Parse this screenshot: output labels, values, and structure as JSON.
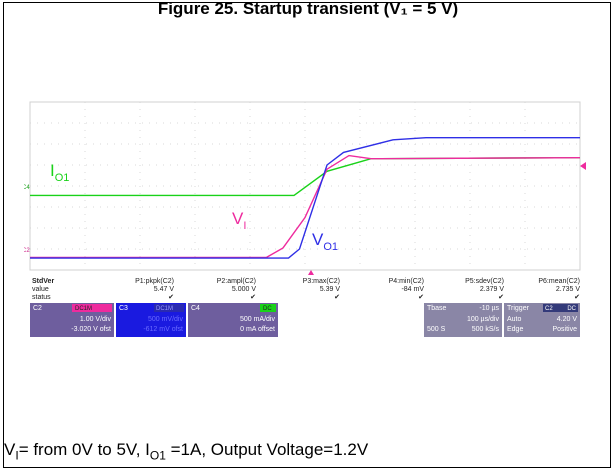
{
  "title": "Figure 25. Startup transient (V₁ = 5 V)",
  "caption": {
    "text1": "V",
    "sub1": "I",
    "text2": "= from 0V to 5V, I",
    "sub2": "O1",
    "text3": " =1A, Output Voltage=1.2V"
  },
  "traces": {
    "io1": {
      "label": "I",
      "sub": "O1",
      "color": "#19d219"
    },
    "vi": {
      "label": "V",
      "sub": "I",
      "color": "#ee2b9e"
    },
    "vo1": {
      "label": "V",
      "sub": "O1",
      "color": "#2f2fe6"
    }
  },
  "channel_markers": {
    "c4": "C4",
    "c2": "C2"
  },
  "measurements": {
    "row_labels": [
      "StdVer",
      "value",
      "status"
    ],
    "columns": [
      {
        "name": "P1:pkpk(C2)",
        "value": "5.47 V"
      },
      {
        "name": "P2:ampl(C2)",
        "value": "5.000 V"
      },
      {
        "name": "P3:max(C2)",
        "value": "5.39 V"
      },
      {
        "name": "P4:min(C2)",
        "value": "-84 mV"
      },
      {
        "name": "P5:sdev(C2)",
        "value": "2.379 V"
      },
      {
        "name": "P6:mean(C2)",
        "value": "2.735 V"
      }
    ],
    "status_mark": "✔"
  },
  "channels": [
    {
      "id": "C2",
      "tag": "DC1M",
      "scale": "1.00 V/div",
      "offset": "-3.020 V ofst",
      "color": "#ee2b9e"
    },
    {
      "id": "C3",
      "tag": "DC1M",
      "scale": "500 mV/div",
      "offset": "-612 mV ofst",
      "color": "#1a1ae0"
    },
    {
      "id": "C4",
      "tag": "DC",
      "scale": "500 mA/div",
      "offset": "0 mA offset",
      "color": "#19d219"
    }
  ],
  "timebase": {
    "label": "Tbase",
    "delay": "-10 µs",
    "per_div": "100 µs/div",
    "samples": "500 S",
    "rate": "500 kS/s"
  },
  "trigger": {
    "label": "Trigger",
    "source": "C2",
    "coupling": "DC",
    "mode": "Auto",
    "level": "4.20 V",
    "type": "Edge",
    "slope": "Positive"
  },
  "chart_data": {
    "type": "line",
    "title": "Figure 25. Startup transient (V₁ = 5 V)",
    "xlabel": "",
    "ylabel": "",
    "grid": true,
    "x_divisions": 10,
    "y_divisions": 8,
    "x_unit": "div",
    "series": [
      {
        "name": "Iₒ₁",
        "color": "#19d219",
        "x": [
          0,
          4.8,
          5.4,
          6.2,
          10
        ],
        "y": [
          3.55,
          3.55,
          4.7,
          5.3,
          5.35
        ]
      },
      {
        "name": "V₁",
        "color": "#ee2b9e",
        "x": [
          0,
          4.3,
          4.6,
          5.0,
          5.4,
          5.8,
          6.2,
          10
        ],
        "y": [
          0.6,
          0.6,
          1.05,
          2.5,
          4.8,
          5.45,
          5.3,
          5.35
        ]
      },
      {
        "name": "Vₒ₁",
        "color": "#2f2fe6",
        "x": [
          0,
          4.7,
          4.9,
          5.4,
          5.7,
          6.6,
          7.2,
          10
        ],
        "y": [
          0.57,
          0.57,
          1.0,
          5.0,
          5.6,
          6.2,
          6.3,
          6.3
        ]
      }
    ]
  }
}
